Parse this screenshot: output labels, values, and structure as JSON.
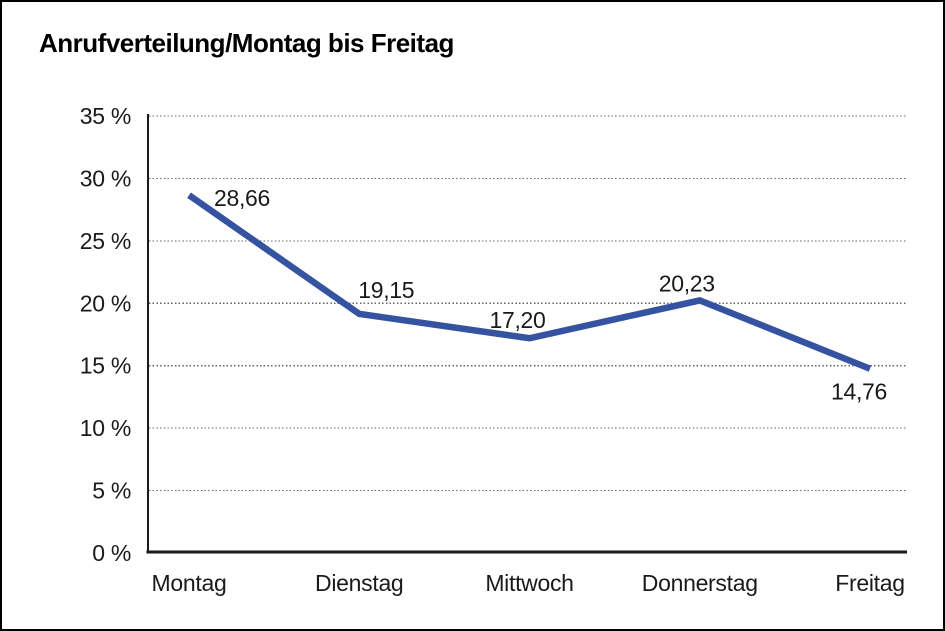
{
  "header": {
    "title": "Anrufverteilung/Montag bis Freitag"
  },
  "colors": {
    "background": "#ffffff",
    "frame_border": "#000000",
    "line": "#3553A0",
    "grid_dots": "#666666",
    "axis": "#1a1a1a",
    "text": "#1a1a1a"
  },
  "chart_data": {
    "type": "line",
    "title": "Anrufverteilung/Montag bis Freitag",
    "categories": [
      "Montag",
      "Dienstag",
      "Mittwoch",
      "Donnerstag",
      "Freitag"
    ],
    "series": [
      {
        "name": "Anrufverteilung",
        "values": [
          28.66,
          19.15,
          17.2,
          20.23,
          14.76
        ],
        "value_labels": [
          "28,66",
          "19,15",
          "17,20",
          "20,23",
          "14,76"
        ]
      }
    ],
    "xlabel": "",
    "ylabel": "",
    "ylim": [
      0,
      35
    ],
    "ytick_step": 5,
    "ytick_labels": [
      "0 %",
      "5 %",
      "10 %",
      "15 %",
      "20 %",
      "25 %",
      "30 %",
      "35 %"
    ],
    "grid": "horizontal-dotted",
    "legend": "none"
  }
}
